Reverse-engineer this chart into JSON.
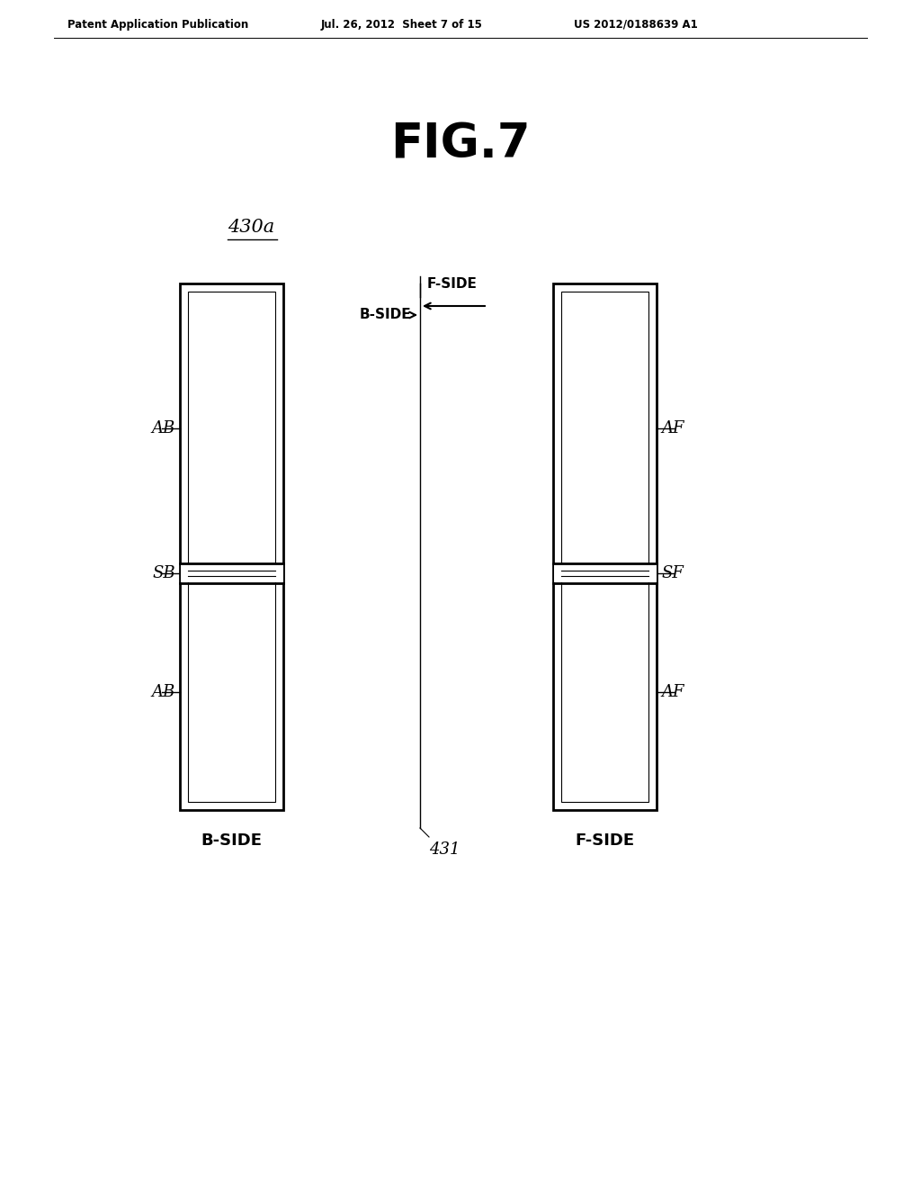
{
  "fig_title": "FIG.7",
  "header_left": "Patent Application Publication",
  "header_center": "Jul. 26, 2012  Sheet 7 of 15",
  "header_right": "US 2012/0188639 A1",
  "label_430a": "430a",
  "label_431": "431",
  "label_bside_bottom": "B-SIDE",
  "label_fside_bottom": "F-SIDE",
  "label_AB_top": "AB",
  "label_AB_bottom": "AB",
  "label_SB": "SB",
  "label_AF_top": "AF",
  "label_AF_bottom": "AF",
  "label_SF": "SF",
  "label_BSIDE_arrow": "B-SIDE",
  "label_FSIDE_arrow": "F-SIDE",
  "bg_color": "#ffffff",
  "line_color": "#000000"
}
